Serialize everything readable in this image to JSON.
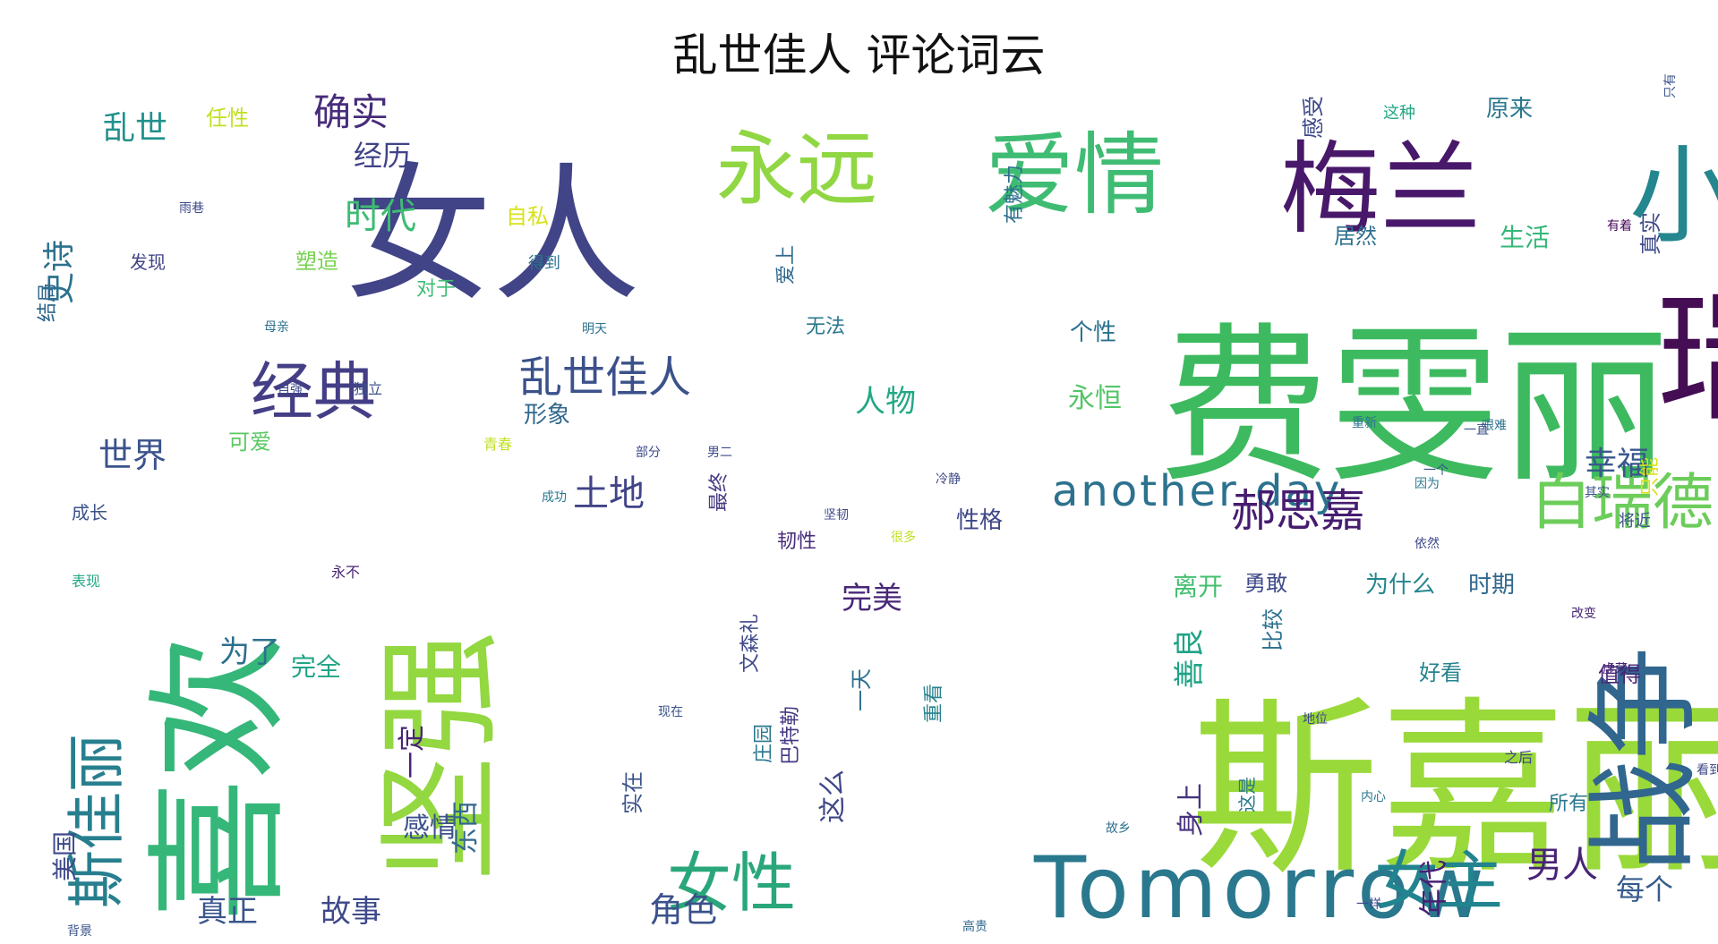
{
  "chart_data": {
    "type": "wordcloud",
    "title": "乱世佳人 评论词云",
    "colormap": "viridis",
    "background": "#ffffff",
    "words": [
      {
        "text": "斯嘉丽",
        "weight": 100,
        "color": "#9ad93a"
      },
      {
        "text": "费雯丽",
        "weight": 95,
        "color": "#3dba5f"
      },
      {
        "text": "女人",
        "weight": 72,
        "color": "#414487"
      },
      {
        "text": "瑞德",
        "weight": 68,
        "color": "#440d54"
      },
      {
        "text": "喜欢",
        "weight": 66,
        "color": "#35b779"
      },
      {
        "text": "坚强",
        "weight": 60,
        "color": "#93d741"
      },
      {
        "text": "小时",
        "weight": 48,
        "color": "#24868e"
      },
      {
        "text": "梅兰",
        "weight": 46,
        "color": "#48186a"
      },
      {
        "text": "爱情",
        "weight": 42,
        "color": "#3fbc73"
      },
      {
        "text": "战争",
        "weight": 56,
        "color": "#31668e"
      },
      {
        "text": "永远",
        "weight": 36,
        "color": "#90d743"
      },
      {
        "text": "Tomorrow",
        "weight": 40,
        "color": "#2a788e"
      },
      {
        "text": "女性",
        "weight": 30,
        "color": "#2aa77a"
      },
      {
        "text": "女主",
        "weight": 30,
        "color": "#22848e"
      },
      {
        "text": "经典",
        "weight": 28,
        "color": "#433e85"
      },
      {
        "text": "白瑞德",
        "weight": 27,
        "color": "#6ccd5a"
      },
      {
        "text": "斯佳丽",
        "weight": 26,
        "color": "#277f8e"
      },
      {
        "text": "乱世佳人",
        "weight": 20,
        "color": "#3b518b"
      },
      {
        "text": "another day",
        "weight": 20,
        "color": "#2c728e"
      },
      {
        "text": "郝思嘉",
        "weight": 20,
        "color": "#461c70"
      },
      {
        "text": "确实",
        "weight": 13,
        "color": "#472c7a"
      },
      {
        "text": "经历",
        "weight": 11,
        "color": "#404387"
      },
      {
        "text": "时代",
        "weight": 13,
        "color": "#3fbc73"
      },
      {
        "text": "史诗",
        "weight": 14,
        "color": "#2c718e"
      },
      {
        "text": "乱世",
        "weight": 12,
        "color": "#21918c"
      },
      {
        "text": "世界",
        "weight": 13,
        "color": "#3b528b"
      },
      {
        "text": "土地",
        "weight": 15,
        "color": "#414487"
      },
      {
        "text": "幸福",
        "weight": 13,
        "color": "#38588c"
      },
      {
        "text": "男人",
        "weight": 15,
        "color": "#482475"
      },
      {
        "text": "角色",
        "weight": 15,
        "color": "#3b528b"
      },
      {
        "text": "故事",
        "weight": 13,
        "color": "#3e4989"
      },
      {
        "text": "真正",
        "weight": 13,
        "color": "#39558c"
      },
      {
        "text": "完美",
        "weight": 13,
        "color": "#482878"
      },
      {
        "text": "为了",
        "weight": 12,
        "color": "#2d708e"
      },
      {
        "text": "善良",
        "weight": 13,
        "color": "#20a386"
      },
      {
        "text": "年代",
        "weight": 12,
        "color": "#482173"
      },
      {
        "text": "每个",
        "weight": 12,
        "color": "#365c8d"
      },
      {
        "text": "人物",
        "weight": 11,
        "color": "#22a884"
      },
      {
        "text": "个性",
        "weight": 10,
        "color": "#2c728e"
      },
      {
        "text": "永恒",
        "weight": 10,
        "color": "#54c568"
      },
      {
        "text": "身上",
        "weight": 12,
        "color": "#46327e"
      },
      {
        "text": "性格",
        "weight": 10,
        "color": "#3f4788"
      },
      {
        "text": "感情",
        "weight": 10,
        "color": "#3b528b"
      },
      {
        "text": "东西",
        "weight": 11,
        "color": "#31688e"
      },
      {
        "text": "一定",
        "weight": 11,
        "color": "#482475"
      },
      {
        "text": "美国",
        "weight": 10,
        "color": "#3e4989"
      },
      {
        "text": "这么",
        "weight": 11,
        "color": "#3f4788"
      },
      {
        "text": "完全",
        "weight": 9,
        "color": "#20a486"
      },
      {
        "text": "生活",
        "weight": 9,
        "color": "#35b779"
      },
      {
        "text": "形象",
        "weight": 9,
        "color": "#31688e"
      },
      {
        "text": "可爱",
        "weight": 8,
        "color": "#5cc863"
      },
      {
        "text": "塑造",
        "weight": 8,
        "color": "#7ad151"
      },
      {
        "text": "原来",
        "weight": 8,
        "color": "#2a788e"
      },
      {
        "text": "离开",
        "weight": 8,
        "color": "#44bf70"
      },
      {
        "text": "勇敢",
        "weight": 8,
        "color": "#3e4989"
      },
      {
        "text": "为什么",
        "weight": 8,
        "color": "#24868e"
      },
      {
        "text": "时期",
        "weight": 8,
        "color": "#31688e"
      },
      {
        "text": "好看",
        "weight": 8,
        "color": "#25838e"
      },
      {
        "text": "值得",
        "weight": 8,
        "color": "#482475"
      },
      {
        "text": "比较",
        "weight": 7,
        "color": "#2d708e"
      },
      {
        "text": "任性",
        "weight": 8,
        "color": "#c2df23"
      },
      {
        "text": "自私",
        "weight": 8,
        "color": "#d8e219"
      },
      {
        "text": "得到",
        "weight": 7,
        "color": "#2c728e"
      },
      {
        "text": "对于",
        "weight": 7,
        "color": "#3fbc73"
      },
      {
        "text": "这种",
        "weight": 7,
        "color": "#22a884"
      },
      {
        "text": "感受",
        "weight": 7,
        "color": "#3e4989"
      },
      {
        "text": "结局",
        "weight": 7,
        "color": "#30678d"
      },
      {
        "text": "发现",
        "weight": 7,
        "color": "#414487"
      },
      {
        "text": "无法",
        "weight": 7,
        "color": "#2a788e"
      },
      {
        "text": "居然",
        "weight": 7,
        "color": "#2d708e"
      },
      {
        "text": "成长",
        "weight": 7,
        "color": "#3b528b"
      },
      {
        "text": "重新",
        "weight": 6,
        "color": "#2c728e"
      },
      {
        "text": "只能",
        "weight": 8,
        "color": "#d8e219"
      },
      {
        "text": "真实",
        "weight": 8,
        "color": "#3e4989"
      },
      {
        "text": "将近",
        "weight": 7,
        "color": "#3b528b"
      },
      {
        "text": "所有",
        "weight": 7,
        "color": "#2a788e"
      },
      {
        "text": "之后",
        "weight": 6,
        "color": "#3f4788"
      },
      {
        "text": "韧性",
        "weight": 7,
        "color": "#472c7a"
      },
      {
        "text": "最终",
        "weight": 7,
        "color": "#443a83"
      },
      {
        "text": "很多",
        "weight": 6,
        "color": "#c2df23"
      },
      {
        "text": "永不",
        "weight": 6,
        "color": "#482475"
      },
      {
        "text": "独立",
        "weight": 6,
        "color": "#3b528b"
      },
      {
        "text": "自强",
        "weight": 6,
        "color": "#3e4989"
      },
      {
        "text": "一天",
        "weight": 7,
        "color": "#2d708e"
      },
      {
        "text": "重看",
        "weight": 7,
        "color": "#25838e"
      },
      {
        "text": "庄园",
        "weight": 7,
        "color": "#2a788e"
      },
      {
        "text": "部分",
        "weight": 6,
        "color": "#3e4989"
      },
      {
        "text": "青春",
        "weight": 6,
        "color": "#c2df23"
      },
      {
        "text": "有着",
        "weight": 6,
        "color": "#440154"
      },
      {
        "text": "背景",
        "weight": 6,
        "color": "#3b528b"
      },
      {
        "text": "有魅力",
        "weight": 7,
        "color": "#2d708e"
      },
      {
        "text": "爱上",
        "weight": 7,
        "color": "#31688e"
      },
      {
        "text": "雨巷",
        "weight": 5,
        "color": "#3e4989"
      },
      {
        "text": "巴特勒",
        "weight": 6,
        "color": "#443a83"
      },
      {
        "text": "文森礼",
        "weight": 6,
        "color": "#3e4989"
      },
      {
        "text": "实在",
        "weight": 7,
        "color": "#3b528b"
      },
      {
        "text": "这是",
        "weight": 6,
        "color": "#2a788e"
      },
      {
        "text": "一样",
        "weight": 6,
        "color": "#3e4989"
      },
      {
        "text": "明天",
        "weight": 5,
        "color": "#2c728e"
      },
      {
        "text": "一个",
        "weight": 5,
        "color": "#3b528b"
      },
      {
        "text": "男二",
        "weight": 5,
        "color": "#3e4989"
      },
      {
        "text": "坚韧",
        "weight": 6,
        "color": "#3e4989"
      },
      {
        "text": "母亲",
        "weight": 5,
        "color": "#2d708e"
      },
      {
        "text": "虚荣",
        "weight": 6,
        "color": "#482475"
      },
      {
        "text": "因为",
        "weight": 5,
        "color": "#2a788e"
      },
      {
        "text": "只有",
        "weight": 5,
        "color": "#3b528b"
      },
      {
        "text": "表现",
        "weight": 5,
        "color": "#22a884"
      },
      {
        "text": "冷静",
        "weight": 5,
        "color": "#3e4989"
      },
      {
        "text": "艰难",
        "weight": 5,
        "color": "#2c728e"
      },
      {
        "text": "其实",
        "weight": 5,
        "color": "#3b528b"
      },
      {
        "text": "成功",
        "weight": 5,
        "color": "#2a788e"
      },
      {
        "text": "看到",
        "weight": 5,
        "color": "#3e4989"
      },
      {
        "text": "高贵",
        "weight": 5,
        "color": "#31688e"
      },
      {
        "text": "故乡",
        "weight": 5,
        "color": "#2d708e"
      },
      {
        "text": "现在",
        "weight": 5,
        "color": "#3b528b"
      },
      {
        "text": "依然",
        "weight": 5,
        "color": "#3e4989"
      },
      {
        "text": "内心",
        "weight": 5,
        "color": "#2a788e"
      },
      {
        "text": "一直",
        "weight": 5,
        "color": "#3b528b"
      },
      {
        "text": "地位",
        "weight": 5,
        "color": "#3e4989"
      },
      {
        "text": "改变",
        "weight": 5,
        "color": "#482475"
      }
    ]
  }
}
